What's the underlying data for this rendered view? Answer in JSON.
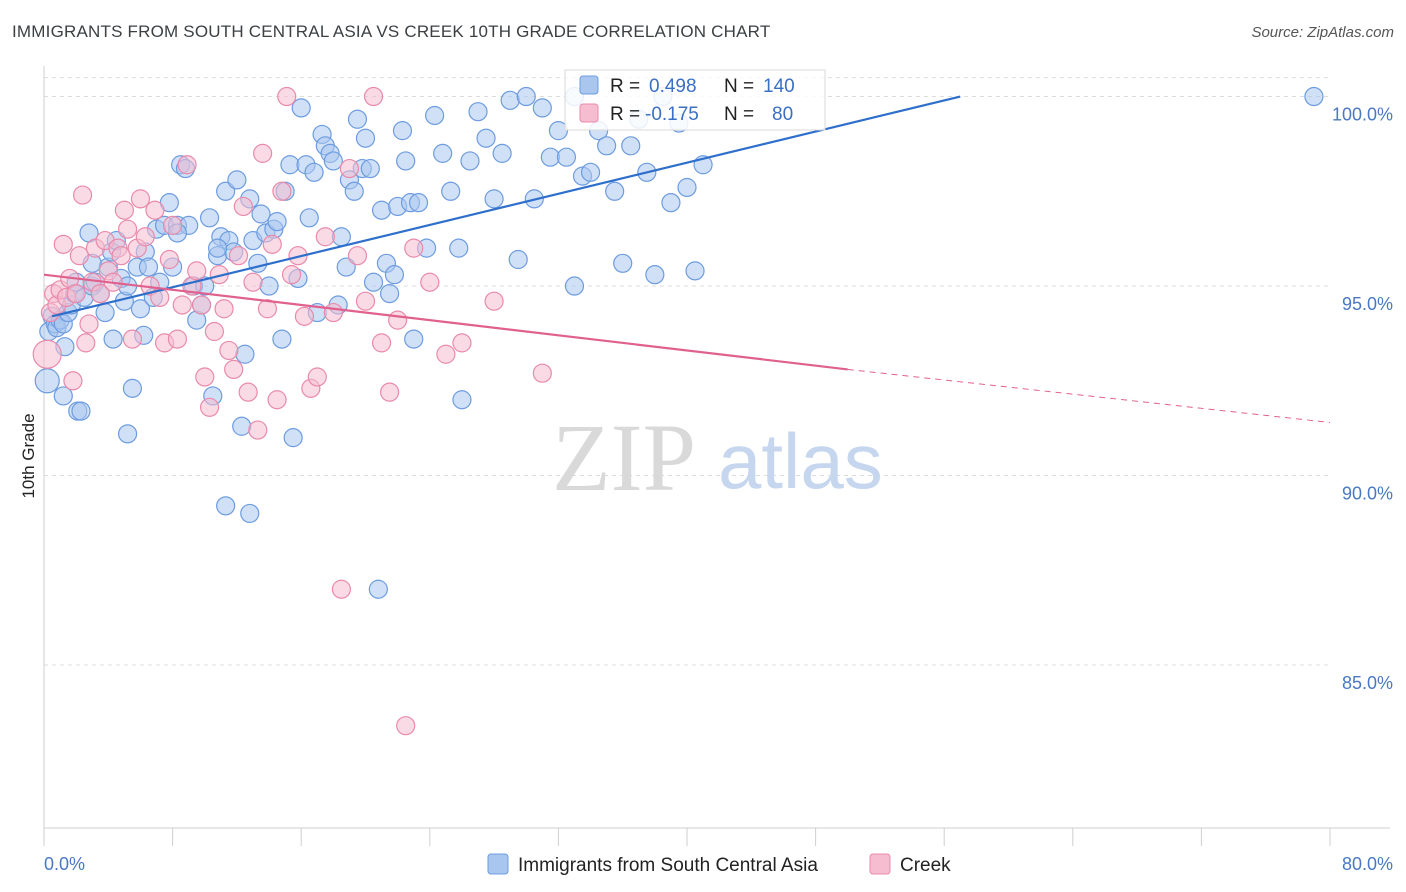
{
  "title": "IMMIGRANTS FROM SOUTH CENTRAL ASIA VS CREEK 10TH GRADE CORRELATION CHART",
  "source": "Source: ZipAtlas.com",
  "watermark": {
    "part1": "ZIP",
    "part2": "atlas"
  },
  "colors": {
    "blue_fill": "#a9c6ef",
    "blue_stroke": "#6d9ce0",
    "blue_line": "#2f6fcc",
    "pink_fill": "#f6bdd0",
    "pink_stroke": "#e98aab",
    "pink_line": "#e0608e",
    "grid": "#dcdcdc",
    "axis_text": "#4a78c2"
  },
  "legend_box": {
    "r_label": "R =",
    "n_label": "N =",
    "rows": [
      {
        "r": "0.498",
        "n": "140"
      },
      {
        "r": "-0.175",
        "n": "80"
      }
    ]
  },
  "chart_data": {
    "type": "scatter",
    "title": "IMMIGRANTS FROM SOUTH CENTRAL ASIA VS CREEK 10TH GRADE CORRELATION CHART",
    "xlabel": "",
    "ylabel": "10th Grade",
    "xlim": [
      0,
      80
    ],
    "ylim": [
      80.7,
      100.7
    ],
    "x_tick_labels": [
      "0.0%",
      "80.0%"
    ],
    "y_ticks": [
      85,
      90,
      95,
      100
    ],
    "y_tick_labels": [
      "85.0%",
      "90.0%",
      "95.0%",
      "100.0%"
    ],
    "grid": true,
    "legend_position": "bottom",
    "series": [
      {
        "name": "Immigrants from South Central Asia",
        "color": "#a9c6ef",
        "trend": {
          "x": [
            0.5,
            57
          ],
          "y": [
            94.2,
            100.0
          ],
          "dashed_extension": false
        },
        "points": [
          [
            0.2,
            92.5
          ],
          [
            0.3,
            93.8
          ],
          [
            0.5,
            94.2
          ],
          [
            0.7,
            94.0
          ],
          [
            0.8,
            93.9
          ],
          [
            1.0,
            94.1
          ],
          [
            1.2,
            94.0
          ],
          [
            1.3,
            93.4
          ],
          [
            1.5,
            94.3
          ],
          [
            1.7,
            94.5
          ],
          [
            1.9,
            94.8
          ],
          [
            2.0,
            95.1
          ],
          [
            2.1,
            91.7
          ],
          [
            2.3,
            91.7
          ],
          [
            2.5,
            94.7
          ],
          [
            2.8,
            96.4
          ],
          [
            3.0,
            95.0
          ],
          [
            3.2,
            95.1
          ],
          [
            3.5,
            94.8
          ],
          [
            3.8,
            94.3
          ],
          [
            4.0,
            95.5
          ],
          [
            4.2,
            95.9
          ],
          [
            4.3,
            93.6
          ],
          [
            4.5,
            96.2
          ],
          [
            4.8,
            95.2
          ],
          [
            5.0,
            94.6
          ],
          [
            5.2,
            95.0
          ],
          [
            5.5,
            92.3
          ],
          [
            5.8,
            95.5
          ],
          [
            6.0,
            94.4
          ],
          [
            6.2,
            93.7
          ],
          [
            6.3,
            95.9
          ],
          [
            6.5,
            95.5
          ],
          [
            6.8,
            94.7
          ],
          [
            7.0,
            96.5
          ],
          [
            7.2,
            95.1
          ],
          [
            7.5,
            96.6
          ],
          [
            7.8,
            97.2
          ],
          [
            8.0,
            95.5
          ],
          [
            8.3,
            96.6
          ],
          [
            8.5,
            98.2
          ],
          [
            8.8,
            98.1
          ],
          [
            9.0,
            96.6
          ],
          [
            9.3,
            95.0
          ],
          [
            9.5,
            94.1
          ],
          [
            9.8,
            94.5
          ],
          [
            10.0,
            95.0
          ],
          [
            10.3,
            96.8
          ],
          [
            10.5,
            92.1
          ],
          [
            10.8,
            95.8
          ],
          [
            11.0,
            96.3
          ],
          [
            11.3,
            97.5
          ],
          [
            11.5,
            96.2
          ],
          [
            11.8,
            95.9
          ],
          [
            12.0,
            97.8
          ],
          [
            12.3,
            91.3
          ],
          [
            12.5,
            93.2
          ],
          [
            12.8,
            97.3
          ],
          [
            13.0,
            96.2
          ],
          [
            13.3,
            95.6
          ],
          [
            13.5,
            96.9
          ],
          [
            13.8,
            96.4
          ],
          [
            14.0,
            95.0
          ],
          [
            14.3,
            96.5
          ],
          [
            14.5,
            96.7
          ],
          [
            14.8,
            93.6
          ],
          [
            15.0,
            97.5
          ],
          [
            15.3,
            98.2
          ],
          [
            15.5,
            91.0
          ],
          [
            15.8,
            95.2
          ],
          [
            16.0,
            99.7
          ],
          [
            16.3,
            98.2
          ],
          [
            16.5,
            96.8
          ],
          [
            16.8,
            98.0
          ],
          [
            17.0,
            94.3
          ],
          [
            17.3,
            99.0
          ],
          [
            17.5,
            98.7
          ],
          [
            17.8,
            98.5
          ],
          [
            18.0,
            98.3
          ],
          [
            18.3,
            94.5
          ],
          [
            18.5,
            96.3
          ],
          [
            18.8,
            95.5
          ],
          [
            19.0,
            97.8
          ],
          [
            19.3,
            97.5
          ],
          [
            19.5,
            99.4
          ],
          [
            19.8,
            98.1
          ],
          [
            20.0,
            98.9
          ],
          [
            20.3,
            98.1
          ],
          [
            20.5,
            95.1
          ],
          [
            20.8,
            87.0
          ],
          [
            21.0,
            97.0
          ],
          [
            21.3,
            95.6
          ],
          [
            21.5,
            94.8
          ],
          [
            21.8,
            95.3
          ],
          [
            22.0,
            97.1
          ],
          [
            22.3,
            99.1
          ],
          [
            22.5,
            98.3
          ],
          [
            22.8,
            97.2
          ],
          [
            23.0,
            93.6
          ],
          [
            23.3,
            97.2
          ],
          [
            23.8,
            96.0
          ],
          [
            24.3,
            99.5
          ],
          [
            24.8,
            98.5
          ],
          [
            25.3,
            97.5
          ],
          [
            25.8,
            96.0
          ],
          [
            26.0,
            92.0
          ],
          [
            26.5,
            98.3
          ],
          [
            27.0,
            99.6
          ],
          [
            27.5,
            98.9
          ],
          [
            28.0,
            97.3
          ],
          [
            28.5,
            98.5
          ],
          [
            29.0,
            99.9
          ],
          [
            29.5,
            95.7
          ],
          [
            30.0,
            100.0
          ],
          [
            30.5,
            97.3
          ],
          [
            31.0,
            99.7
          ],
          [
            31.5,
            98.4
          ],
          [
            32.0,
            99.1
          ],
          [
            32.5,
            98.4
          ],
          [
            33.0,
            100.0
          ],
          [
            33.5,
            97.9
          ],
          [
            34.0,
            98.0
          ],
          [
            34.5,
            99.1
          ],
          [
            35.0,
            98.7
          ],
          [
            35.5,
            97.5
          ],
          [
            36.0,
            95.6
          ],
          [
            36.5,
            98.7
          ],
          [
            37.0,
            99.4
          ],
          [
            37.5,
            98.0
          ],
          [
            38.0,
            95.3
          ],
          [
            38.5,
            100.0
          ],
          [
            39.0,
            97.2
          ],
          [
            39.5,
            99.3
          ],
          [
            40.0,
            97.6
          ],
          [
            40.5,
            95.4
          ],
          [
            41.0,
            98.2
          ],
          [
            33.0,
            95.0
          ],
          [
            8.3,
            96.4
          ],
          [
            3.0,
            95.6
          ],
          [
            10.8,
            96.0
          ],
          [
            79.0,
            100.0
          ],
          [
            11.3,
            89.2
          ],
          [
            12.8,
            89.0
          ],
          [
            1.2,
            92.1
          ],
          [
            5.2,
            91.1
          ]
        ]
      },
      {
        "name": "Creek",
        "color": "#f6bdd0",
        "trend": {
          "x": [
            0,
            50
          ],
          "y": [
            95.3,
            92.8
          ],
          "dashed_extension": true,
          "extension_to": [
            80,
            91.4
          ]
        },
        "points": [
          [
            0.2,
            93.2
          ],
          [
            0.4,
            94.3
          ],
          [
            0.6,
            94.8
          ],
          [
            0.8,
            94.5
          ],
          [
            1.0,
            94.9
          ],
          [
            1.2,
            96.1
          ],
          [
            1.4,
            94.7
          ],
          [
            1.6,
            95.2
          ],
          [
            1.8,
            92.5
          ],
          [
            2.0,
            94.8
          ],
          [
            2.2,
            95.8
          ],
          [
            2.4,
            97.4
          ],
          [
            2.6,
            93.5
          ],
          [
            2.8,
            94.0
          ],
          [
            3.0,
            95.1
          ],
          [
            3.2,
            96.0
          ],
          [
            3.5,
            94.8
          ],
          [
            3.8,
            96.2
          ],
          [
            4.0,
            95.4
          ],
          [
            4.3,
            95.1
          ],
          [
            4.6,
            96.0
          ],
          [
            4.8,
            95.8
          ],
          [
            5.0,
            97.0
          ],
          [
            5.2,
            96.5
          ],
          [
            5.5,
            93.6
          ],
          [
            5.8,
            96.0
          ],
          [
            6.0,
            97.3
          ],
          [
            6.3,
            96.3
          ],
          [
            6.6,
            95.0
          ],
          [
            6.9,
            97.0
          ],
          [
            7.2,
            94.7
          ],
          [
            7.5,
            93.5
          ],
          [
            7.8,
            95.7
          ],
          [
            8.0,
            96.6
          ],
          [
            8.3,
            93.6
          ],
          [
            8.6,
            94.5
          ],
          [
            8.9,
            98.2
          ],
          [
            9.2,
            95.0
          ],
          [
            9.5,
            95.4
          ],
          [
            9.8,
            94.5
          ],
          [
            10.0,
            92.6
          ],
          [
            10.3,
            91.8
          ],
          [
            10.6,
            93.8
          ],
          [
            10.9,
            95.3
          ],
          [
            11.2,
            94.4
          ],
          [
            11.5,
            93.3
          ],
          [
            11.8,
            92.8
          ],
          [
            12.1,
            95.8
          ],
          [
            12.4,
            97.1
          ],
          [
            12.7,
            92.2
          ],
          [
            13.0,
            95.1
          ],
          [
            13.3,
            91.2
          ],
          [
            13.6,
            98.5
          ],
          [
            13.9,
            94.4
          ],
          [
            14.2,
            96.1
          ],
          [
            14.5,
            92.0
          ],
          [
            14.8,
            97.5
          ],
          [
            15.1,
            100.0
          ],
          [
            15.4,
            95.3
          ],
          [
            15.8,
            95.8
          ],
          [
            16.2,
            94.2
          ],
          [
            16.6,
            92.3
          ],
          [
            17.0,
            92.6
          ],
          [
            17.5,
            96.3
          ],
          [
            18.0,
            94.3
          ],
          [
            18.5,
            87.0
          ],
          [
            19.0,
            98.1
          ],
          [
            19.5,
            95.8
          ],
          [
            20.0,
            94.6
          ],
          [
            20.5,
            100.0
          ],
          [
            21.0,
            93.5
          ],
          [
            21.5,
            92.2
          ],
          [
            22.0,
            94.1
          ],
          [
            22.5,
            83.4
          ],
          [
            23.0,
            96.0
          ],
          [
            24.0,
            95.1
          ],
          [
            25.0,
            93.2
          ],
          [
            26.0,
            93.5
          ],
          [
            28.0,
            94.6
          ],
          [
            31.0,
            92.7
          ]
        ]
      }
    ]
  },
  "legend": {
    "items": [
      {
        "label": "Immigrants from South Central Asia"
      },
      {
        "label": "Creek"
      }
    ]
  }
}
